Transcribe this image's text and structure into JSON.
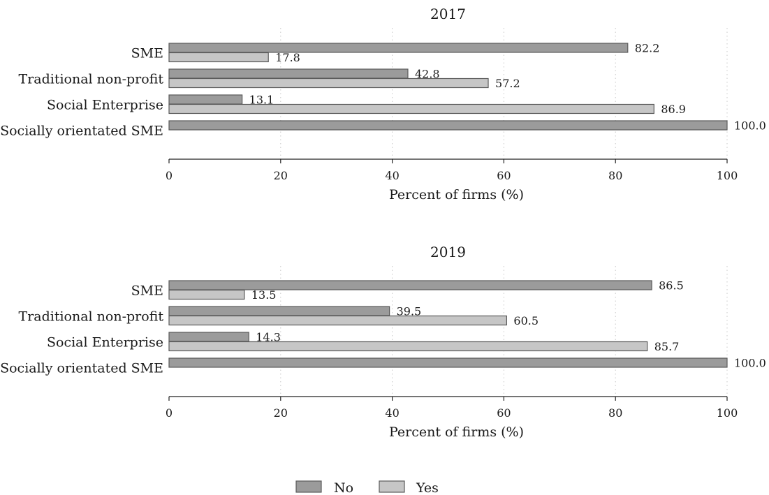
{
  "chart_data": [
    {
      "type": "bar",
      "orientation": "horizontal",
      "title": "2017",
      "categories": [
        "SME",
        "Traditional non-profit",
        "Social Enterprise",
        "Socially orientated SME"
      ],
      "series": [
        {
          "name": "No",
          "values": [
            82.2,
            42.8,
            13.1,
            100.0
          ]
        },
        {
          "name": "Yes",
          "values": [
            17.8,
            57.2,
            86.9,
            null
          ]
        }
      ],
      "value_labels": {
        "No": [
          "82.2",
          "42.8",
          "13.1",
          "100.0"
        ],
        "Yes": [
          "17.8",
          "57.2",
          "86.9",
          ""
        ]
      },
      "xlabel": "Percent of firms (%)",
      "xlim": [
        0,
        100
      ],
      "xticks": [
        0,
        20,
        40,
        60,
        80,
        100
      ],
      "xtick_labels": [
        "0",
        "20",
        "40",
        "60",
        "80",
        "100"
      ],
      "grid": true
    },
    {
      "type": "bar",
      "orientation": "horizontal",
      "title": "2019",
      "categories": [
        "SME",
        "Traditional non-profit",
        "Social Enterprise",
        "Socially orientated SME"
      ],
      "series": [
        {
          "name": "No",
          "values": [
            86.5,
            39.5,
            14.3,
            100.0
          ]
        },
        {
          "name": "Yes",
          "values": [
            13.5,
            60.5,
            85.7,
            null
          ]
        }
      ],
      "value_labels": {
        "No": [
          "86.5",
          "39.5",
          "14.3",
          "100.0"
        ],
        "Yes": [
          "13.5",
          "60.5",
          "85.7",
          ""
        ]
      },
      "xlabel": "Percent of firms (%)",
      "xlim": [
        0,
        100
      ],
      "xticks": [
        0,
        20,
        40,
        60,
        80,
        100
      ],
      "xtick_labels": [
        "0",
        "20",
        "40",
        "60",
        "80",
        "100"
      ],
      "grid": true
    }
  ],
  "legend": {
    "placement": "bottom-center",
    "items": [
      {
        "label": "No",
        "color": "#9b9b9b"
      },
      {
        "label": "Yes",
        "color": "#c6c6c6"
      }
    ]
  },
  "colors": {
    "No": "#9b9b9b",
    "Yes": "#c6c6c6",
    "bar_edge": "#5a5a5a"
  }
}
